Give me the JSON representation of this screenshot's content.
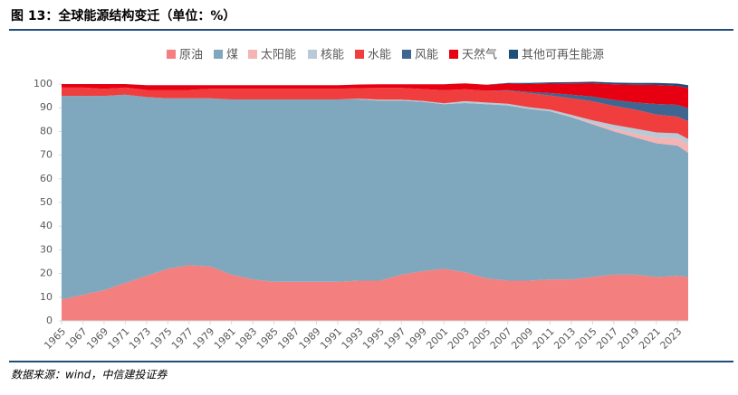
{
  "chart_data": {
    "type": "stacked_area",
    "title": "图 13：全球能源结构变迁（单位：%）",
    "source": "数据来源：wind，中信建投证券",
    "x": [
      1965,
      1967,
      1969,
      1971,
      1973,
      1975,
      1977,
      1979,
      1981,
      1983,
      1985,
      1987,
      1989,
      1991,
      1993,
      1995,
      1997,
      1999,
      2001,
      2003,
      2005,
      2007,
      2009,
      2011,
      2013,
      2015,
      2017,
      2019,
      2021,
      2023,
      2024
    ],
    "xlim": [
      1965,
      2024
    ],
    "xticks": [
      1965,
      1967,
      1969,
      1971,
      1973,
      1975,
      1977,
      1979,
      1981,
      1983,
      1985,
      1987,
      1989,
      1991,
      1993,
      1995,
      1997,
      1999,
      2001,
      2003,
      2005,
      2007,
      2009,
      2011,
      2013,
      2015,
      2017,
      2019,
      2021,
      2023
    ],
    "ylim": [
      0,
      100
    ],
    "yticks": [
      0,
      10,
      20,
      30,
      40,
      50,
      60,
      70,
      80,
      90,
      100
    ],
    "legend": "top",
    "series": [
      {
        "name": "原油",
        "color": "#f47f7f",
        "values": [
          9,
          11,
          13,
          16,
          19,
          22,
          23.5,
          23,
          19.5,
          17.5,
          16.5,
          16.5,
          16.5,
          16.5,
          17,
          17,
          19.5,
          21,
          22,
          20.5,
          18,
          17,
          17,
          17.5,
          17.5,
          18.5,
          19.5,
          19.5,
          18.5,
          19,
          18.5
        ]
      },
      {
        "name": "煤",
        "color": "#7fa7bd",
        "values": [
          86,
          84,
          82,
          79.5,
          75.5,
          72,
          70.5,
          71,
          74,
          76,
          77,
          77,
          77,
          77,
          76.5,
          76,
          73.5,
          71.5,
          69.5,
          71.5,
          73.5,
          74,
          72.5,
          71,
          68.5,
          64.5,
          60.5,
          58,
          56.5,
          55,
          52.5
        ]
      },
      {
        "name": "太阳能",
        "color": "#f6b3b3",
        "values": [
          0,
          0,
          0,
          0,
          0,
          0,
          0,
          0,
          0,
          0,
          0,
          0,
          0,
          0,
          0,
          0,
          0,
          0,
          0,
          0,
          0,
          0,
          0,
          0,
          0.2,
          0.5,
          1,
          1.5,
          2.3,
          3,
          3.5
        ]
      },
      {
        "name": "核能",
        "color": "#b9c9d5",
        "values": [
          0,
          0,
          0,
          0,
          0,
          0,
          0,
          0,
          0,
          0,
          0,
          0,
          0,
          0,
          0.3,
          0.4,
          0.4,
          0.4,
          0.4,
          0.8,
          0.7,
          0.7,
          0.7,
          0.7,
          0.8,
          1.2,
          1.8,
          2.2,
          2.3,
          2.2,
          2.3
        ]
      },
      {
        "name": "水能",
        "color": "#f03e3e",
        "values": [
          3.5,
          3.5,
          3,
          3,
          3,
          3.5,
          3.5,
          4,
          4.5,
          4.5,
          4.5,
          4.5,
          4.5,
          4.5,
          4.5,
          5,
          5,
          5,
          5.5,
          5,
          5,
          5.5,
          6,
          6,
          7,
          8,
          8,
          8,
          7.5,
          7,
          7.5
        ]
      },
      {
        "name": "风能",
        "color": "#3f6690",
        "values": [
          0,
          0,
          0,
          0,
          0,
          0,
          0,
          0,
          0,
          0,
          0,
          0,
          0,
          0,
          0,
          0,
          0,
          0,
          0,
          0,
          0,
          0.2,
          0.5,
          1,
          1.5,
          2,
          2.5,
          3,
          4.5,
          5,
          5.5
        ]
      },
      {
        "name": "天然气",
        "color": "#e60012",
        "values": [
          1.5,
          1.5,
          2,
          1.5,
          2,
          2,
          2,
          1.5,
          1.5,
          1.5,
          1.5,
          1.5,
          1.5,
          1.5,
          1.5,
          1.5,
          1.5,
          2,
          2.5,
          2.5,
          2.5,
          2.8,
          3.3,
          4,
          4.8,
          5.7,
          6.6,
          7.5,
          8,
          8,
          8.5
        ]
      },
      {
        "name": "其他可再生能源",
        "color": "#1f4e79",
        "values": [
          0,
          0,
          0,
          0,
          0,
          0,
          0,
          0,
          0,
          0,
          0,
          0,
          0,
          0,
          0,
          0,
          0,
          0,
          0,
          0,
          0,
          0.3,
          0.5,
          0.5,
          0.5,
          0.6,
          0.7,
          0.8,
          0.9,
          1,
          1.2
        ]
      }
    ]
  }
}
